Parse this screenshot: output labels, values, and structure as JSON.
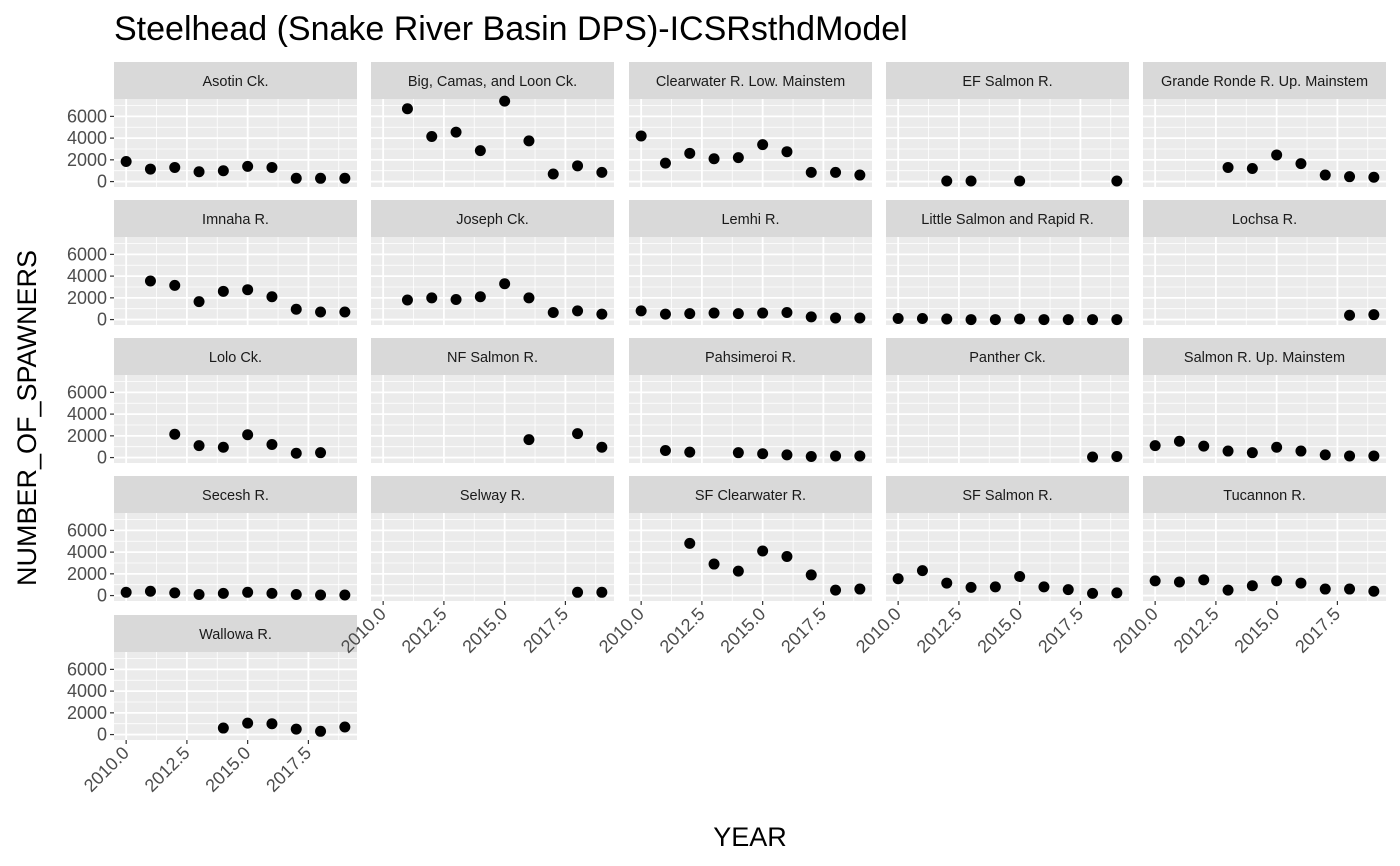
{
  "chart_data": {
    "type": "scatter",
    "title": "Steelhead (Snake River Basin DPS)-ICSRsthdModel",
    "xlabel": "YEAR",
    "ylabel": "NUMBER_OF_SPAWNERS",
    "xlim": [
      2009.5,
      2019.5
    ],
    "ylim": [
      -500,
      7600
    ],
    "x_ticks": [
      2010.0,
      2012.5,
      2015.0,
      2017.5
    ],
    "x_tick_labels": [
      "2010.0",
      "2012.5",
      "2015.0",
      "2017.5"
    ],
    "y_ticks": [
      0,
      2000,
      4000,
      6000
    ],
    "y_tick_labels": [
      "0",
      "2000",
      "4000",
      "6000"
    ],
    "grid": true,
    "point_color": "#000000",
    "panel_background": "#ebebeb",
    "strip_background": "#d9d9d9",
    "facets": [
      {
        "name": "Asotin Ck.",
        "points": [
          [
            2010,
            1850
          ],
          [
            2011,
            1150
          ],
          [
            2012,
            1300
          ],
          [
            2013,
            900
          ],
          [
            2014,
            1000
          ],
          [
            2015,
            1400
          ],
          [
            2016,
            1300
          ],
          [
            2017,
            300
          ],
          [
            2018,
            300
          ],
          [
            2019,
            300
          ]
        ]
      },
      {
        "name": "Big, Camas, and Loon Ck.",
        "points": [
          [
            2011,
            6700
          ],
          [
            2012,
            4150
          ],
          [
            2013,
            4550
          ],
          [
            2014,
            2850
          ],
          [
            2015,
            7400
          ],
          [
            2016,
            3750
          ],
          [
            2017,
            700
          ],
          [
            2018,
            1450
          ],
          [
            2019,
            850
          ]
        ]
      },
      {
        "name": "Clearwater R. Low. Mainstem",
        "points": [
          [
            2010,
            4200
          ],
          [
            2011,
            1700
          ],
          [
            2012,
            2600
          ],
          [
            2013,
            2100
          ],
          [
            2014,
            2200
          ],
          [
            2015,
            3400
          ],
          [
            2016,
            2750
          ],
          [
            2017,
            850
          ],
          [
            2018,
            850
          ],
          [
            2019,
            600
          ]
        ]
      },
      {
        "name": "EF Salmon R.",
        "points": [
          [
            2012,
            50
          ],
          [
            2013,
            50
          ],
          [
            2015,
            50
          ],
          [
            2019,
            50
          ]
        ]
      },
      {
        "name": "Grande Ronde R. Up. Mainstem",
        "points": [
          [
            2013,
            1300
          ],
          [
            2014,
            1200
          ],
          [
            2015,
            2450
          ],
          [
            2016,
            1650
          ],
          [
            2017,
            600
          ],
          [
            2018,
            450
          ],
          [
            2019,
            400
          ]
        ]
      },
      {
        "name": "Imnaha R.",
        "points": [
          [
            2011,
            3550
          ],
          [
            2012,
            3150
          ],
          [
            2013,
            1650
          ],
          [
            2014,
            2600
          ],
          [
            2015,
            2750
          ],
          [
            2016,
            2100
          ],
          [
            2017,
            950
          ],
          [
            2018,
            700
          ],
          [
            2019,
            700
          ]
        ]
      },
      {
        "name": "Joseph Ck.",
        "points": [
          [
            2011,
            1800
          ],
          [
            2012,
            2000
          ],
          [
            2013,
            1850
          ],
          [
            2014,
            2100
          ],
          [
            2015,
            3300
          ],
          [
            2016,
            2000
          ],
          [
            2017,
            650
          ],
          [
            2018,
            800
          ],
          [
            2019,
            500
          ]
        ]
      },
      {
        "name": "Lemhi R.",
        "points": [
          [
            2010,
            800
          ],
          [
            2011,
            500
          ],
          [
            2012,
            550
          ],
          [
            2013,
            600
          ],
          [
            2014,
            550
          ],
          [
            2015,
            600
          ],
          [
            2016,
            650
          ],
          [
            2017,
            250
          ],
          [
            2018,
            150
          ],
          [
            2019,
            150
          ]
        ]
      },
      {
        "name": "Little Salmon and Rapid R.",
        "points": [
          [
            2010,
            100
          ],
          [
            2011,
            100
          ],
          [
            2012,
            50
          ],
          [
            2013,
            0
          ],
          [
            2014,
            0
          ],
          [
            2015,
            50
          ],
          [
            2016,
            0
          ],
          [
            2017,
            0
          ],
          [
            2018,
            0
          ],
          [
            2019,
            0
          ]
        ]
      },
      {
        "name": "Lochsa R.",
        "points": [
          [
            2018,
            400
          ],
          [
            2019,
            450
          ]
        ]
      },
      {
        "name": "Lolo Ck.",
        "points": [
          [
            2012,
            2150
          ],
          [
            2013,
            1100
          ],
          [
            2014,
            950
          ],
          [
            2015,
            2100
          ],
          [
            2016,
            1200
          ],
          [
            2017,
            400
          ],
          [
            2018,
            450
          ]
        ]
      },
      {
        "name": "NF Salmon R.",
        "points": [
          [
            2016,
            1650
          ],
          [
            2018,
            2200
          ],
          [
            2019,
            950
          ]
        ]
      },
      {
        "name": "Pahsimeroi R.",
        "points": [
          [
            2011,
            650
          ],
          [
            2012,
            500
          ],
          [
            2014,
            450
          ],
          [
            2015,
            350
          ],
          [
            2016,
            250
          ],
          [
            2017,
            100
          ],
          [
            2018,
            150
          ],
          [
            2019,
            150
          ]
        ]
      },
      {
        "name": "Panther Ck.",
        "points": [
          [
            2018,
            50
          ],
          [
            2019,
            100
          ]
        ]
      },
      {
        "name": "Salmon R. Up. Mainstem",
        "points": [
          [
            2010,
            1100
          ],
          [
            2011,
            1500
          ],
          [
            2012,
            1050
          ],
          [
            2013,
            600
          ],
          [
            2014,
            450
          ],
          [
            2015,
            950
          ],
          [
            2016,
            600
          ],
          [
            2017,
            250
          ],
          [
            2018,
            150
          ],
          [
            2019,
            150
          ]
        ]
      },
      {
        "name": "Secesh R.",
        "points": [
          [
            2010,
            300
          ],
          [
            2011,
            400
          ],
          [
            2012,
            250
          ],
          [
            2013,
            100
          ],
          [
            2014,
            200
          ],
          [
            2015,
            300
          ],
          [
            2016,
            200
          ],
          [
            2017,
            100
          ],
          [
            2018,
            50
          ],
          [
            2019,
            50
          ]
        ]
      },
      {
        "name": "Selway R.",
        "points": [
          [
            2018,
            300
          ],
          [
            2019,
            300
          ]
        ]
      },
      {
        "name": "SF Clearwater R.",
        "points": [
          [
            2012,
            4800
          ],
          [
            2013,
            2900
          ],
          [
            2014,
            2250
          ],
          [
            2015,
            4100
          ],
          [
            2016,
            3600
          ],
          [
            2017,
            1900
          ],
          [
            2018,
            500
          ],
          [
            2019,
            600
          ]
        ]
      },
      {
        "name": "SF Salmon R.",
        "points": [
          [
            2010,
            1550
          ],
          [
            2011,
            2300
          ],
          [
            2012,
            1150
          ],
          [
            2013,
            750
          ],
          [
            2014,
            800
          ],
          [
            2015,
            1750
          ],
          [
            2016,
            800
          ],
          [
            2017,
            550
          ],
          [
            2018,
            200
          ],
          [
            2019,
            250
          ]
        ]
      },
      {
        "name": "Tucannon R.",
        "points": [
          [
            2010,
            1350
          ],
          [
            2011,
            1250
          ],
          [
            2012,
            1450
          ],
          [
            2013,
            500
          ],
          [
            2014,
            900
          ],
          [
            2015,
            1350
          ],
          [
            2016,
            1150
          ],
          [
            2017,
            600
          ],
          [
            2018,
            600
          ],
          [
            2019,
            400
          ]
        ]
      },
      {
        "name": "Wallowa R.",
        "points": [
          [
            2014,
            600
          ],
          [
            2015,
            1050
          ],
          [
            2016,
            1000
          ],
          [
            2017,
            500
          ],
          [
            2018,
            300
          ],
          [
            2019,
            700
          ]
        ]
      }
    ]
  }
}
